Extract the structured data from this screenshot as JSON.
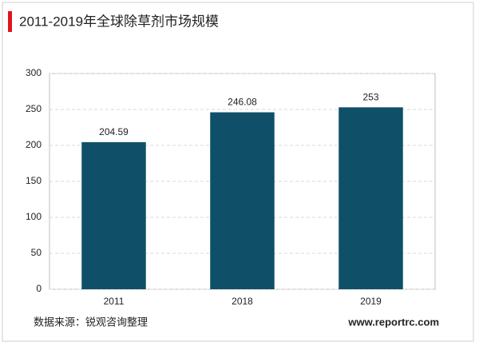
{
  "chart_data": {
    "type": "bar",
    "title": "2011-2019年全球除草剂市场规模",
    "categories": [
      "2011",
      "2018",
      "2019"
    ],
    "values": [
      204.59,
      246.08,
      253
    ],
    "color": "#0f5068",
    "ylim": [
      0,
      300
    ],
    "yticks": [
      0,
      50,
      100,
      150,
      200,
      250,
      300
    ],
    "grid": true,
    "source": "数据来源：锐观咨询整理",
    "website": "www.reportrc.com"
  }
}
